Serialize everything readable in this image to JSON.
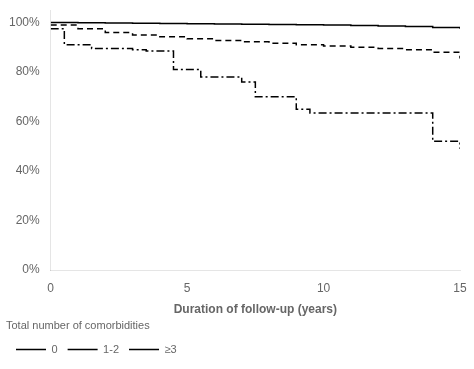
{
  "chart_data": {
    "type": "step",
    "x_label": "Duration of follow-up (years)",
    "legend_title": "Total number of comorbidities",
    "legend": "lower left",
    "grid": false,
    "xlim": [
      0,
      15
    ],
    "xticks": [
      0,
      5,
      10,
      15
    ],
    "ylim": [
      0,
      1.05
    ],
    "yticks": [
      {
        "value": 0.0,
        "label": "0%"
      },
      {
        "value": 0.2,
        "label": "20%"
      },
      {
        "value": 0.4,
        "label": "40%"
      },
      {
        "value": 0.6,
        "label": "60%"
      },
      {
        "value": 0.8,
        "label": "80%"
      },
      {
        "value": 1.0,
        "label": "100%"
      }
    ],
    "series": [
      {
        "name": "0",
        "color": "#000000",
        "line_style": "solid",
        "x": [
          0,
          1,
          2,
          3,
          4,
          5,
          6,
          7,
          8,
          9,
          10,
          11,
          12,
          13,
          14,
          15
        ],
        "values": [
          1.0,
          0.999,
          0.998,
          0.997,
          0.996,
          0.995,
          0.994,
          0.993,
          0.992,
          0.991,
          0.99,
          0.988,
          0.986,
          0.984,
          0.98,
          0.975
        ]
      },
      {
        "name": "1-2",
        "color": "#000000",
        "line_style": "dashed",
        "x": [
          0,
          1,
          2,
          3,
          4,
          5,
          6,
          7,
          8,
          9,
          10,
          11,
          12,
          13,
          14,
          15
        ],
        "values": [
          0.99,
          0.975,
          0.96,
          0.95,
          0.943,
          0.935,
          0.928,
          0.922,
          0.916,
          0.91,
          0.905,
          0.9,
          0.895,
          0.89,
          0.88,
          0.855
        ]
      },
      {
        "name": "≥3",
        "color": "#000000",
        "line_style": "dashdot",
        "x": [
          0,
          0.5,
          1.0,
          1.5,
          2.0,
          3.0,
          3.5,
          4.0,
          4.5,
          5.0,
          5.5,
          6.0,
          7.0,
          7.5,
          8.0,
          9.0,
          9.5,
          10.0,
          12.0,
          13.5,
          14.0,
          14.5,
          15.0
        ],
        "values": [
          0.975,
          0.91,
          0.91,
          0.895,
          0.895,
          0.89,
          0.885,
          0.885,
          0.81,
          0.81,
          0.78,
          0.78,
          0.76,
          0.7,
          0.7,
          0.65,
          0.635,
          0.635,
          0.635,
          0.635,
          0.52,
          0.52,
          0.49
        ]
      }
    ]
  }
}
